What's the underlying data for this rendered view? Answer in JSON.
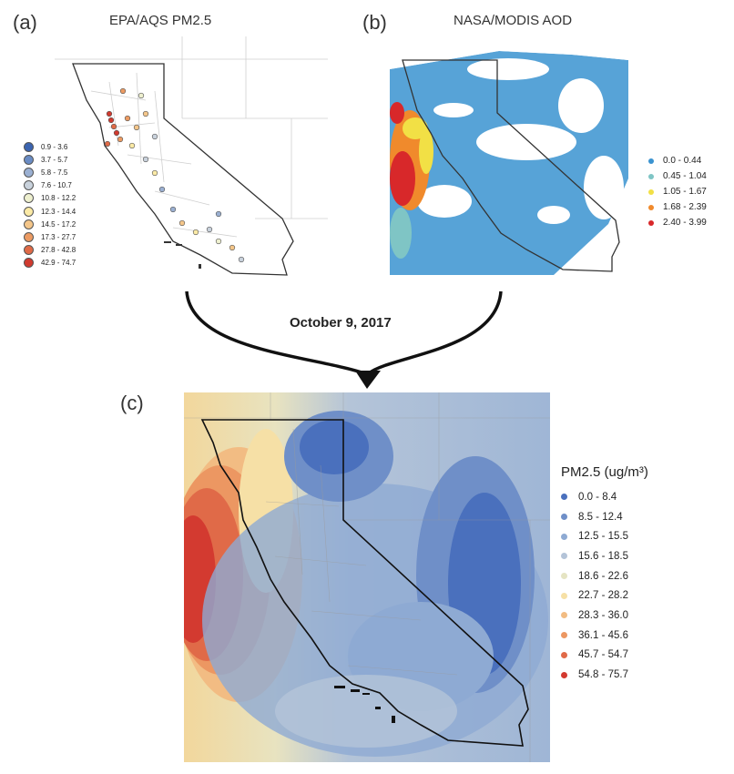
{
  "panel_a": {
    "label": "(a)",
    "title": "EPA/AQS PM2.5",
    "legend": [
      {
        "range": "0.9 - 3.6",
        "color": "#3b64b0"
      },
      {
        "range": "3.7 - 5.7",
        "color": "#6a8cc4"
      },
      {
        "range": "5.8 - 7.5",
        "color": "#9bb0d2"
      },
      {
        "range": "7.6 - 10.7",
        "color": "#c9d2dc"
      },
      {
        "range": "10.8 - 12.2",
        "color": "#eef0cf"
      },
      {
        "range": "12.3 - 14.4",
        "color": "#fbeaa6"
      },
      {
        "range": "14.5 - 17.2",
        "color": "#f4c68a"
      },
      {
        "range": "17.3 - 27.7",
        "color": "#ec9b63"
      },
      {
        "range": "27.8 - 42.8",
        "color": "#e06a47"
      },
      {
        "range": "42.9 - 74.7",
        "color": "#d03a2f"
      }
    ]
  },
  "panel_b": {
    "label": "(b)",
    "title": "NASA/MODIS AOD",
    "legend": [
      {
        "range": "0.0 - 0.44",
        "color": "#3a93d0"
      },
      {
        "range": "0.45 - 1.04",
        "color": "#7fc5c5"
      },
      {
        "range": "1.05 - 1.67",
        "color": "#f2e045"
      },
      {
        "range": "1.68 - 2.39",
        "color": "#f08a2c"
      },
      {
        "range": "2.40 - 3.99",
        "color": "#d8282a"
      }
    ]
  },
  "date_label": "October 9, 2017",
  "panel_c": {
    "label": "(c)",
    "legend_title": "PM2.5 (ug/m³)",
    "legend": [
      {
        "range": "0.0 - 8.4",
        "color": "#4a70bd"
      },
      {
        "range": "8.5 - 12.4",
        "color": "#6f8fc8"
      },
      {
        "range": "12.5 - 15.5",
        "color": "#8eaad3"
      },
      {
        "range": "15.6 - 18.5",
        "color": "#b4c4d8"
      },
      {
        "range": "18.6 - 22.6",
        "color": "#e5e4c3"
      },
      {
        "range": "22.7 - 28.2",
        "color": "#f6e0a6"
      },
      {
        "range": "28.3 - 36.0",
        "color": "#f2bc83"
      },
      {
        "range": "36.1 - 45.6",
        "color": "#ec9762"
      },
      {
        "range": "45.7 - 54.7",
        "color": "#e06a48"
      },
      {
        "range": "54.8 - 75.7",
        "color": "#d33a30"
      }
    ]
  }
}
